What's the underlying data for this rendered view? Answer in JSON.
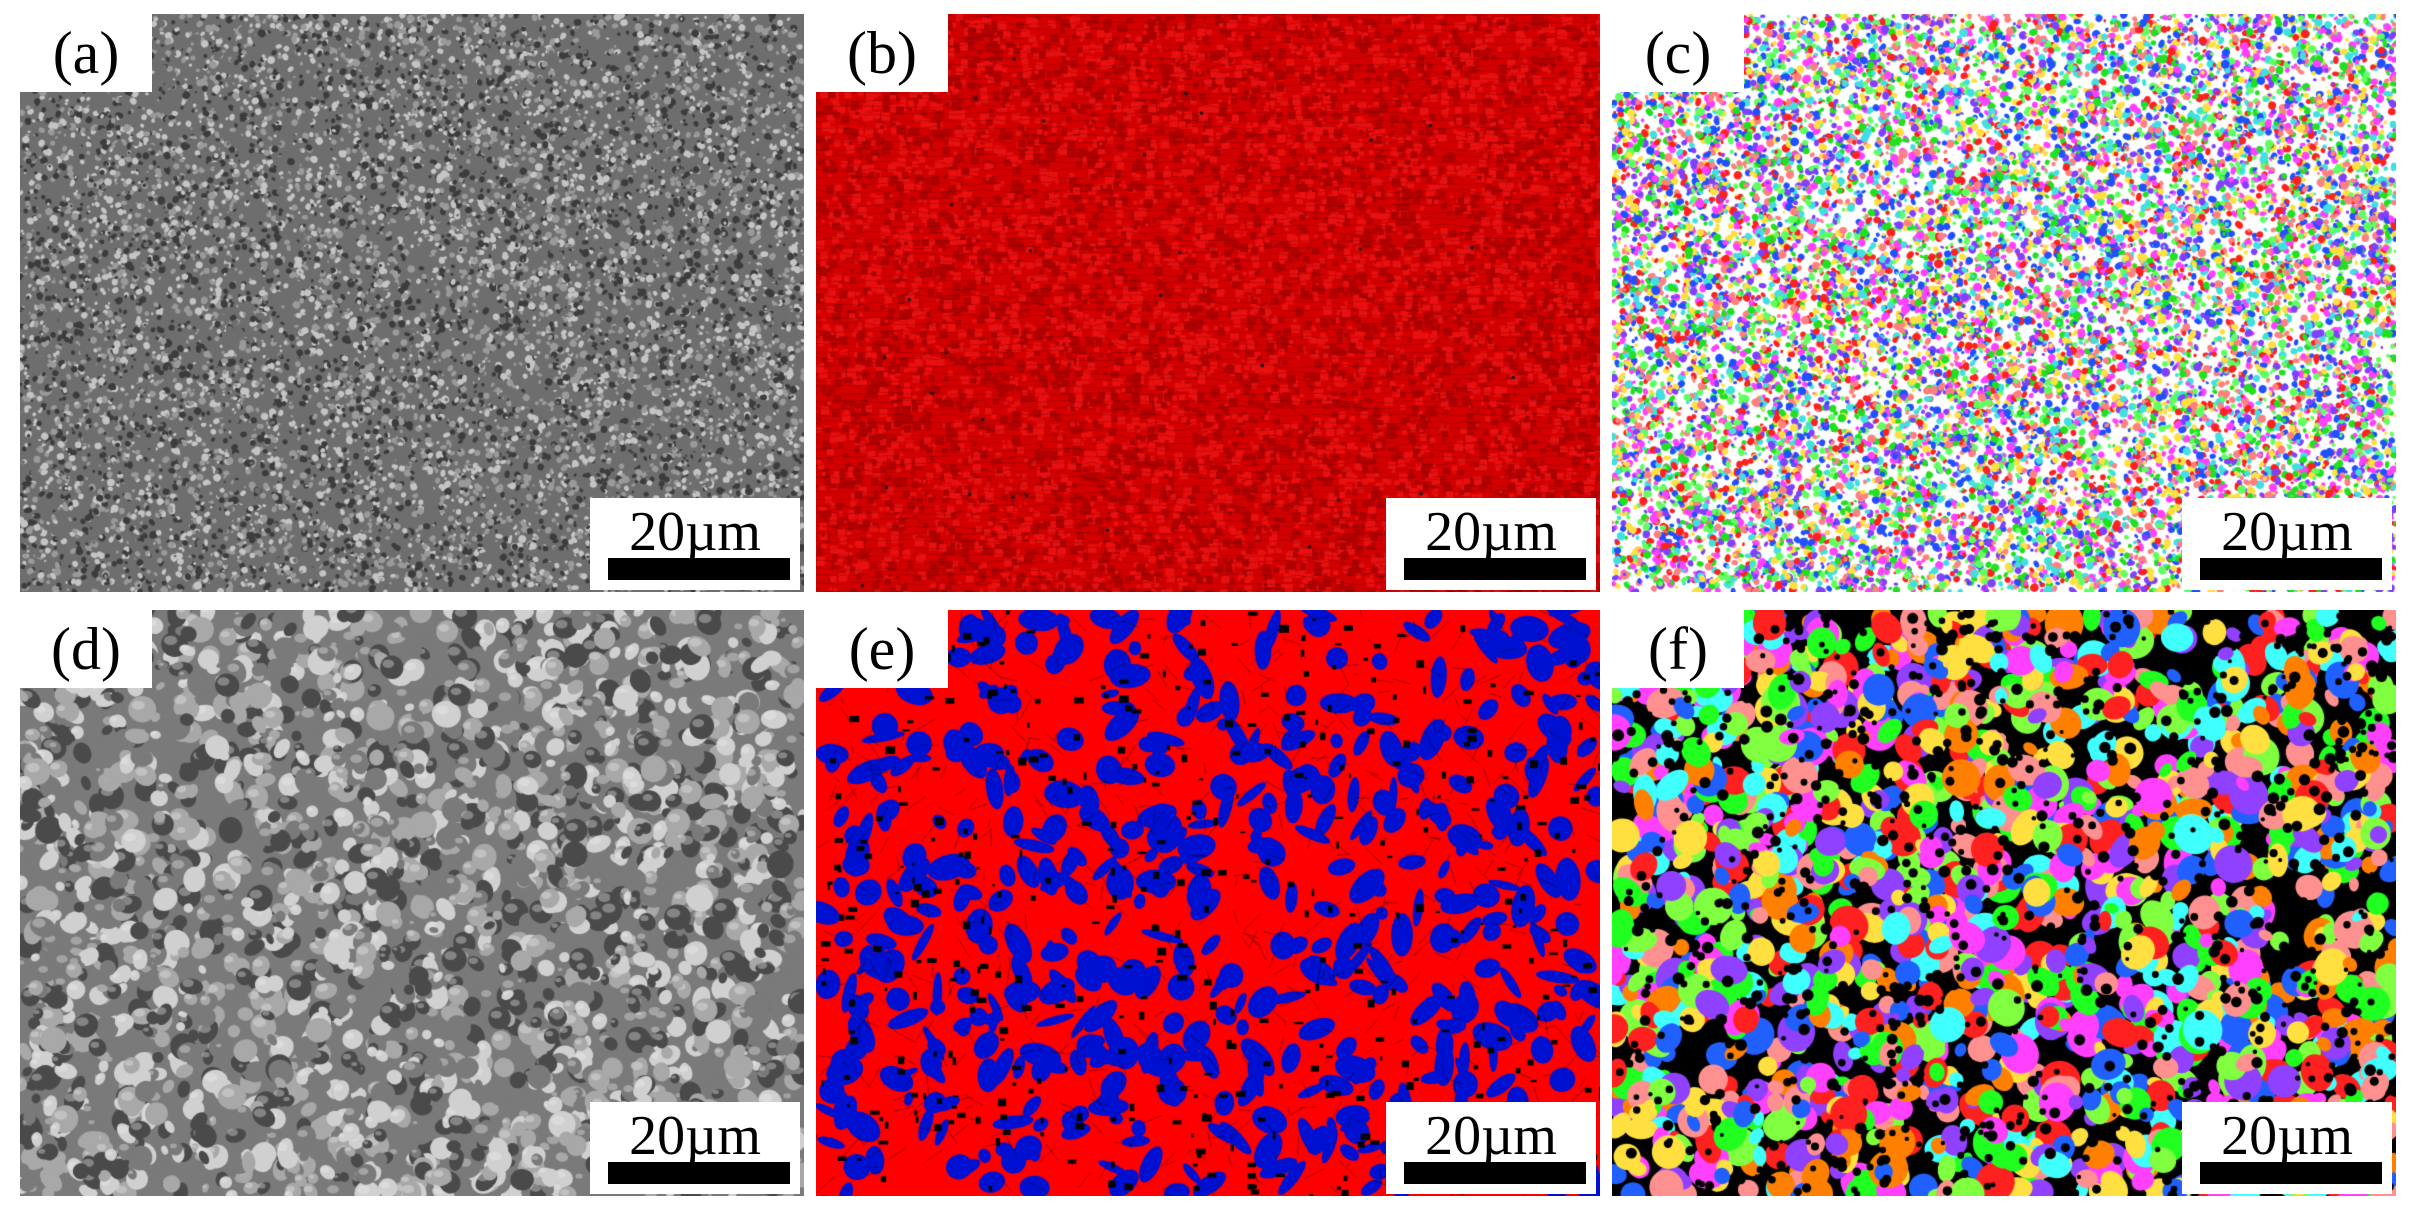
{
  "panels": [
    {
      "label": "(a)",
      "scalebar": "20µm",
      "style": "sem-fine",
      "palette": [
        "#3c3c3c",
        "#6e6e6e",
        "#9a9a9a",
        "#c4c4c4"
      ]
    },
    {
      "label": "(b)",
      "scalebar": "20µm",
      "style": "phase-fine",
      "palette": [
        "#d40000",
        "#e81010",
        "#b00000",
        "#101010"
      ]
    },
    {
      "label": "(c)",
      "scalebar": "20µm",
      "style": "ipf-fine",
      "palette": [
        "#ff2020",
        "#20e020",
        "#2050ff",
        "#ff40ff",
        "#40e0e0",
        "#ffe040",
        "#8040ff",
        "#ff8080",
        "#60ff60"
      ]
    },
    {
      "label": "(d)",
      "scalebar": "20µm",
      "style": "sem-coarse",
      "palette": [
        "#4a4a4a",
        "#7a7a7a",
        "#a8a8a8",
        "#d0d0d0"
      ]
    },
    {
      "label": "(e)",
      "scalebar": "20µm",
      "style": "phase-coarse",
      "palette": [
        "#ff0000",
        "#0010d0",
        "#000000"
      ]
    },
    {
      "label": "(f)",
      "scalebar": "20µm",
      "style": "ipf-coarse",
      "palette": [
        "#ff2020",
        "#20ff20",
        "#2060ff",
        "#ff40ff",
        "#40ffff",
        "#ffe040",
        "#9040ff",
        "#ff9090",
        "#80ff40",
        "#ff8000"
      ]
    }
  ]
}
